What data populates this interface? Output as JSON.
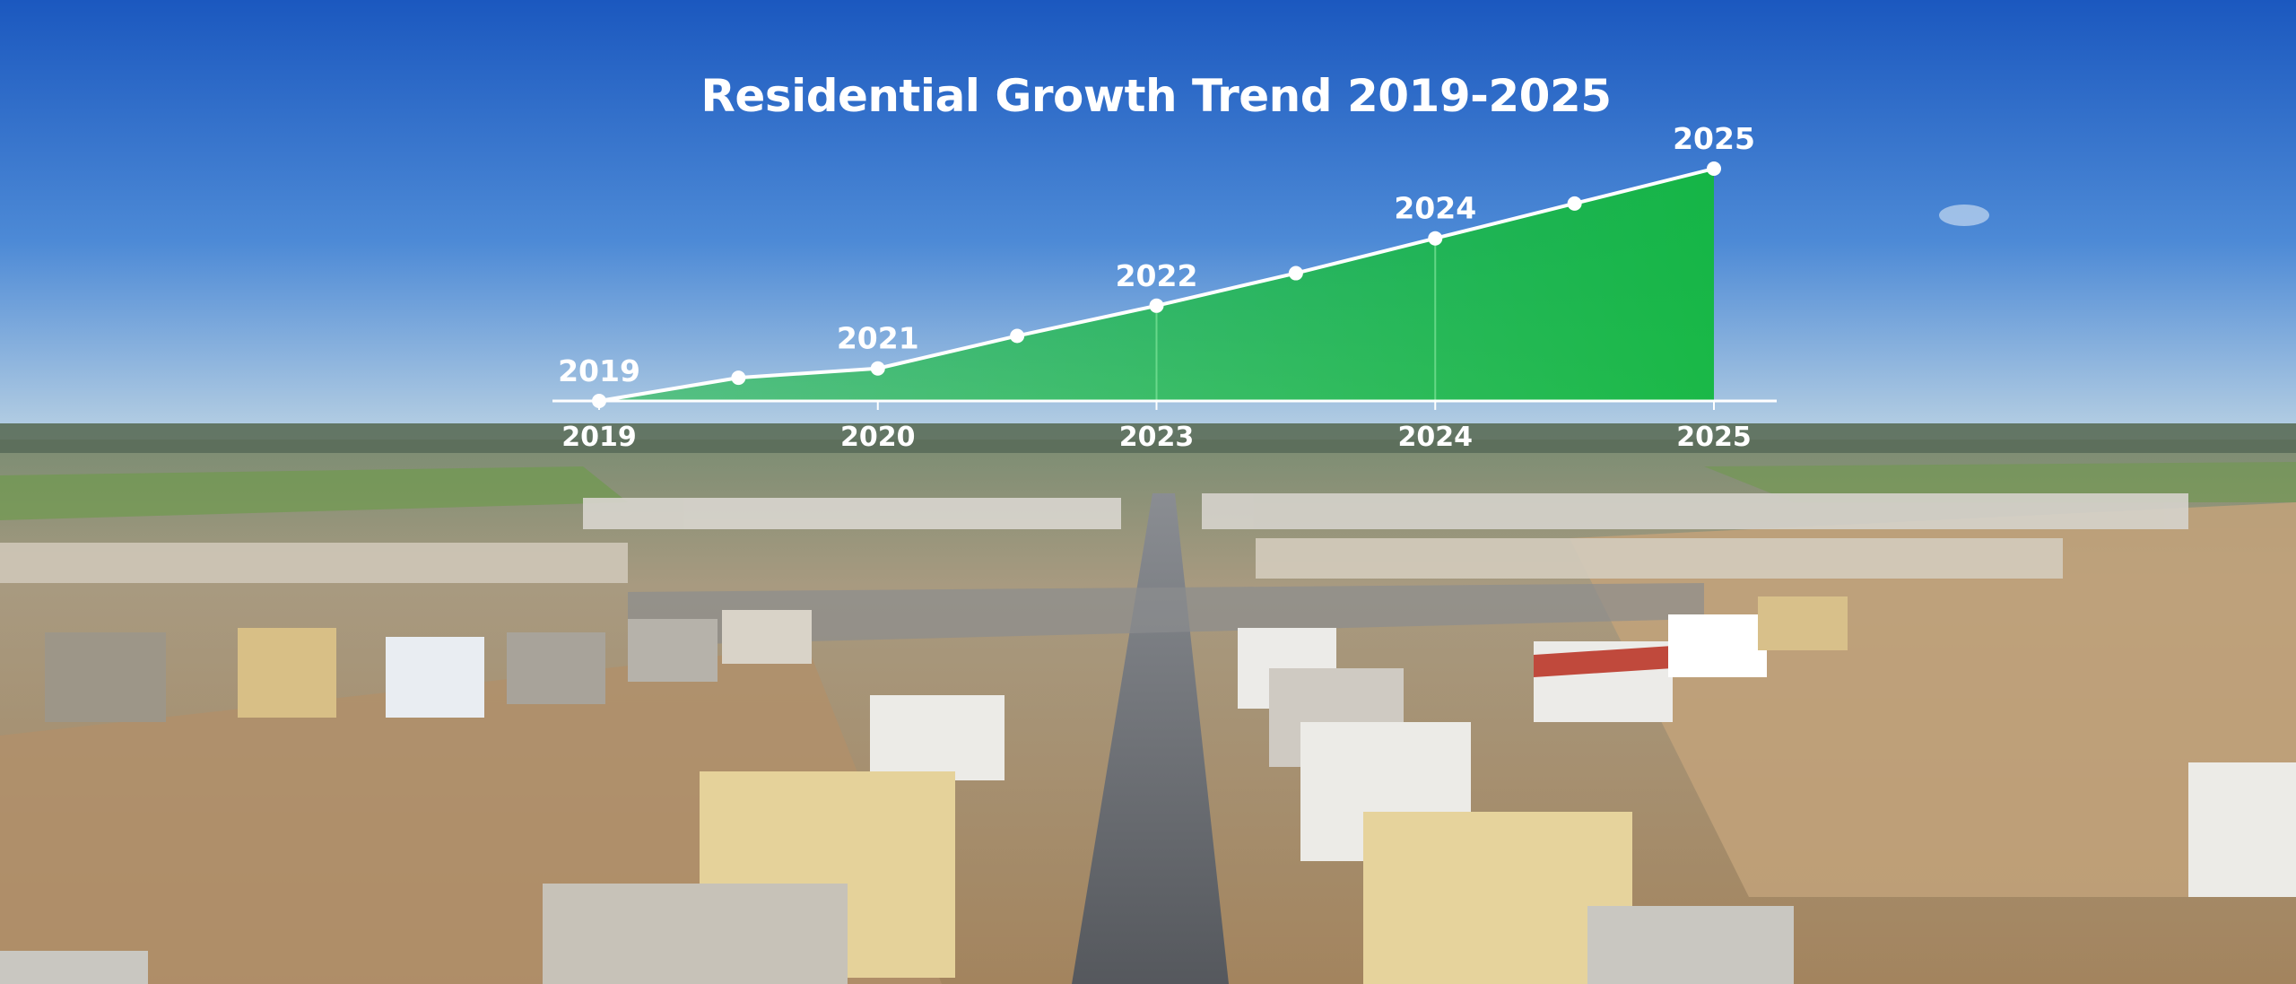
{
  "chart_data": {
    "type": "area",
    "title": "Residential Growth Trend 2019-2025",
    "xlabel": "",
    "ylabel": "",
    "x_ticks": [
      "2019",
      "2020",
      "2023",
      "2024",
      "2025"
    ],
    "point_labels": [
      "2019",
      "2021",
      "2022",
      "2024",
      "2025"
    ],
    "series": [
      {
        "values": [
          0,
          10,
          14,
          28,
          41,
          55,
          70,
          85,
          100
        ]
      }
    ],
    "ylim": [
      0,
      100
    ],
    "grid": false,
    "legend": "none",
    "colors": {
      "fill": "#1fb84a",
      "line": "#ffffff",
      "sky_top": "#1c5fc4",
      "sky_bottom": "#a9c6df"
    }
  }
}
